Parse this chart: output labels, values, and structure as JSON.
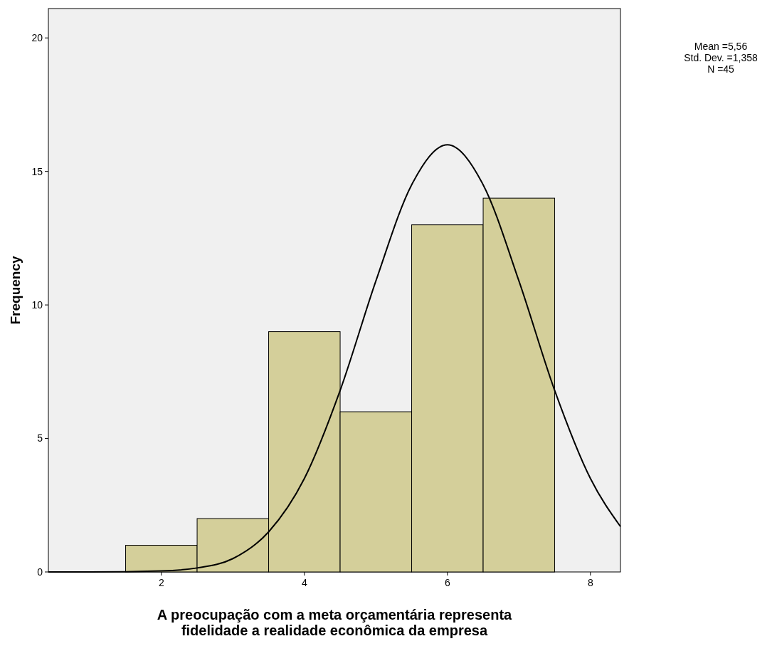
{
  "chart_data": {
    "type": "histogram",
    "xlabel": "A preocupação com a meta orçamentária representa\nfidelidade a realidade econômica da empresa",
    "ylabel": "Frequency",
    "bins": [
      1.5,
      2.5,
      3.5,
      4.5,
      5.5,
      6.5,
      7.5
    ],
    "values": [
      1,
      2,
      9,
      6,
      13,
      14
    ],
    "color": "#d4cf9a",
    "series": [
      {
        "type": "line",
        "color": "#000000",
        "x": [
          0.42,
          1,
          2,
          2.5,
          3,
          3.5,
          4,
          4.5,
          5,
          5.5,
          6,
          6.5,
          7,
          7.5,
          8,
          8.42
        ],
        "values": [
          0,
          0,
          0.04,
          0.15,
          0.5,
          1.5,
          3.5,
          6.8,
          10.9,
          14.5,
          16,
          14.5,
          10.9,
          6.8,
          3.5,
          1.7
        ]
      }
    ],
    "xlim": [
      0.42,
      8.42
    ],
    "xticks": [
      2,
      4,
      6,
      8
    ],
    "ylim": [
      0,
      21.1
    ],
    "yticks": [
      0,
      5,
      10,
      15,
      20
    ],
    "grid": false,
    "annotations": [
      "Mean =5,56",
      "Std. Dev. =1,358",
      "N =45"
    ]
  }
}
